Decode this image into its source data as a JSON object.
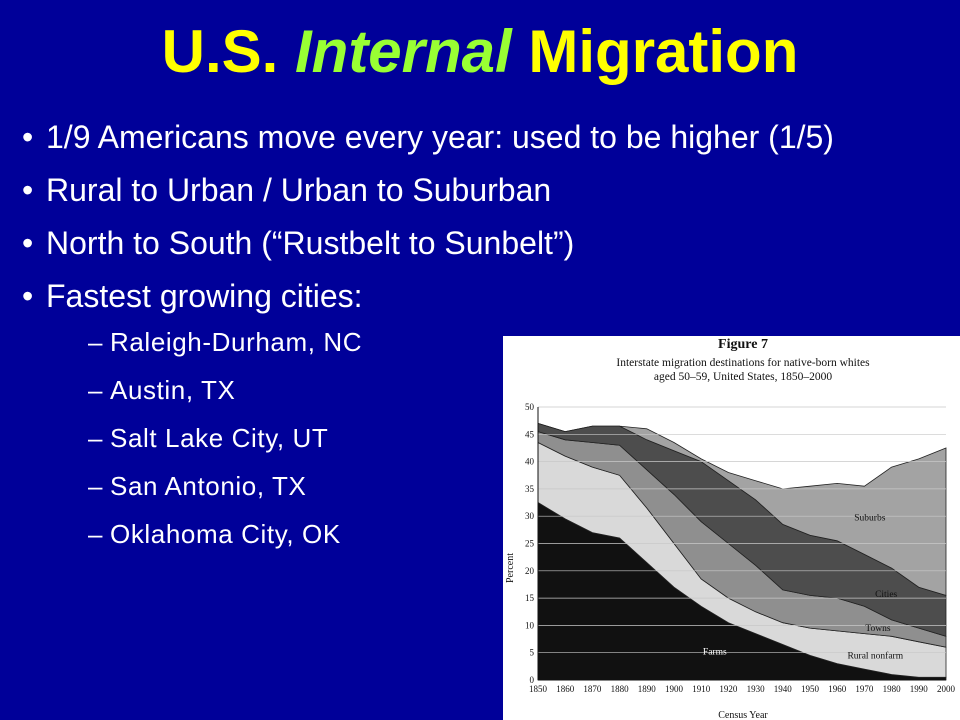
{
  "title": {
    "prefix": "U.S. ",
    "italic": "Internal",
    "suffix": " Migration"
  },
  "bullets": [
    {
      "text": "1/9 Americans move every year: used to be higher (1/5)"
    },
    {
      "text": "Rural to Urban / Urban to Suburban"
    },
    {
      "text": "North to South (“Rustbelt to Sunbelt”)"
    },
    {
      "text": "Fastest growing cities:"
    }
  ],
  "sub_bullets": [
    {
      "dash": "–",
      "text": "Raleigh-Durham, NC"
    },
    {
      "dash": "–",
      "text": "Austin, TX"
    },
    {
      "dash": "–",
      "text": "Salt Lake City, UT"
    },
    {
      "dash": "–",
      "text": "San Antonio, TX"
    },
    {
      "dash": "–",
      "text": "Oklahoma City, OK"
    }
  ],
  "chart_data": {
    "type": "area",
    "figure_label": "Figure 7",
    "title": "Interstate migration destinations for native-born whites aged 50–59, United States, 1850–2000",
    "xlabel": "Census Year",
    "ylabel": "Percent",
    "x": [
      1850,
      1860,
      1870,
      1880,
      1890,
      1900,
      1910,
      1920,
      1930,
      1940,
      1950,
      1960,
      1970,
      1980,
      1990,
      2000
    ],
    "x_ticks": [
      "1850",
      "1860",
      "1870",
      "1880",
      "1890",
      "1900",
      "1910",
      "1920",
      "1930",
      "1940",
      "1950",
      "1960",
      "1970",
      "1980",
      "1990",
      "2000"
    ],
    "ylim": [
      0,
      50
    ],
    "y_ticks": [
      "0",
      "5",
      "10",
      "15",
      "20",
      "25",
      "30",
      "35",
      "40",
      "45",
      "50"
    ],
    "grid": "horizontal",
    "stacked_boundaries": [
      {
        "name": "Farms",
        "values": [
          32.5,
          29.5,
          27,
          26,
          21.5,
          17,
          13.5,
          10.5,
          8.5,
          6.5,
          4.5,
          3,
          2,
          1,
          0.5,
          0.5
        ]
      },
      {
        "name": "Rural nonfarm",
        "values": [
          43.5,
          41,
          39,
          37.5,
          31.5,
          25,
          18.5,
          15,
          12.5,
          10.5,
          9.5,
          9,
          8.5,
          8,
          7,
          6
        ]
      },
      {
        "name": "Towns",
        "values": [
          45.5,
          44,
          43.5,
          43,
          38.5,
          34,
          29,
          25,
          21,
          16.5,
          15.5,
          15,
          13.5,
          11,
          9.5,
          8
        ]
      },
      {
        "name": "Cities",
        "values": [
          47,
          45.5,
          46.5,
          46.5,
          44,
          42,
          40,
          36.5,
          33,
          28.5,
          26.5,
          25.5,
          23,
          20.5,
          17,
          15.5
        ]
      },
      {
        "name": "Suburbs",
        "values": [
          47,
          45.5,
          46.5,
          46.5,
          46,
          43.5,
          40.5,
          38,
          36.5,
          35,
          35.5,
          36,
          35.5,
          39,
          40.5,
          42.5
        ]
      }
    ],
    "colors": [
      "#111111",
      "#d9d9d9",
      "#8f8f8f",
      "#4d4d4d",
      "#a3a3a3"
    ],
    "annotations": [
      "Farms",
      "Rural nonfarm",
      "Towns",
      "Cities",
      "Suburbs"
    ]
  }
}
